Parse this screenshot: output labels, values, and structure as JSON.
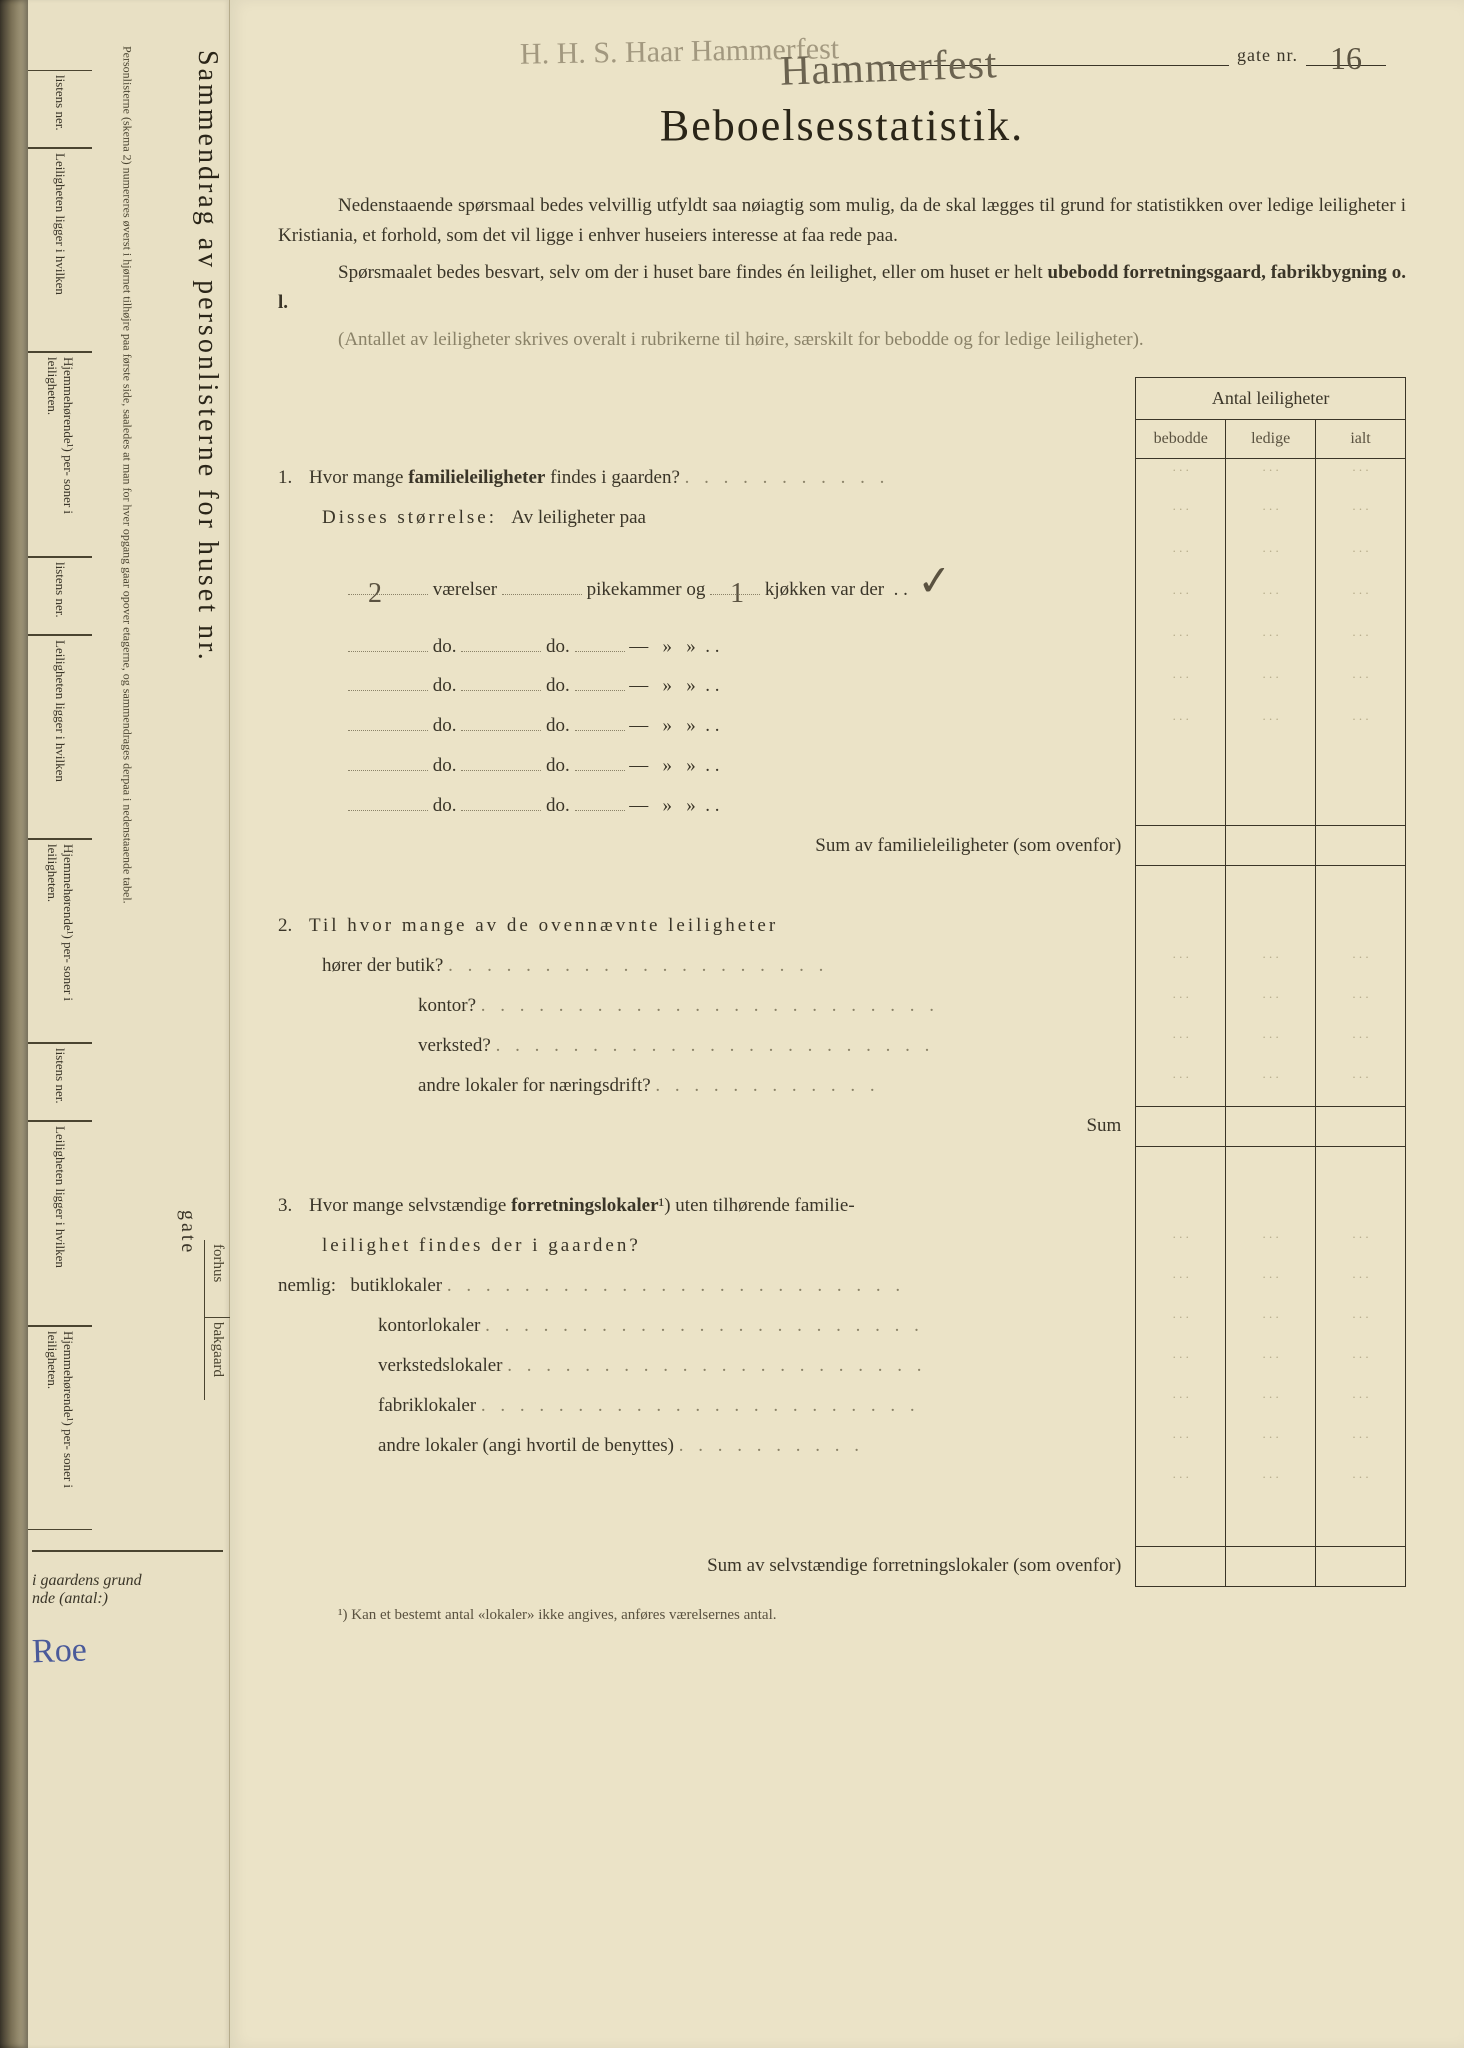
{
  "page": {
    "background_color": "#ebe3c7",
    "text_color": "#3a3528",
    "faint_color": "#8a8268",
    "rule_color": "#3a3528"
  },
  "top": {
    "handwritten_note": "H. H. S. Haar\nHammerfest",
    "street_handwritten": "Hammerfest",
    "gate_label": "gate nr.",
    "gate_number": "16"
  },
  "title": "Beboelsesstatistik.",
  "intro": {
    "p1": "Nedenstaaende spørsmaal bedes velvillig utfyldt saa nøiagtig som mulig, da de skal lægges til grund for statistikken over ledige leiligheter i Kristiania, et forhold, som det vil ligge i enhver huseiers interesse at faa rede paa.",
    "p2_a": "Spørsmaalet bedes besvart, selv om der i huset bare findes én leilighet, eller om huset er helt ",
    "p2_b": "ubebodd forretningsgaard, fabrikbygning o. l.",
    "p3": "(Antallet av leiligheter skrives overalt i rubrikerne til høire, særskilt for bebodde og for ledige leiligheter)."
  },
  "table_head": {
    "main": "Antal leiligheter",
    "c1": "bebodde",
    "c2": "ledige",
    "c3": "ialt"
  },
  "q1": {
    "num": "1.",
    "text_a": "Hvor mange ",
    "text_b": "familieleiligheter",
    "text_c": " findes i gaarden?",
    "size_label": "Disses størrelse:",
    "size_sub": "Av leiligheter paa",
    "rows": [
      {
        "vaer": "2",
        "pike": "",
        "kjok": "1",
        "check": "✓"
      },
      {
        "vaer": "",
        "pike": "",
        "kjok": "",
        "check": ""
      },
      {
        "vaer": "",
        "pike": "",
        "kjok": "",
        "check": ""
      },
      {
        "vaer": "",
        "pike": "",
        "kjok": "",
        "check": ""
      },
      {
        "vaer": "",
        "pike": "",
        "kjok": "",
        "check": ""
      },
      {
        "vaer": "",
        "pike": "",
        "kjok": "",
        "check": ""
      }
    ],
    "unit_vaer": "værelser",
    "unit_pike": "pikekammer og",
    "unit_kjok": "kjøkken var der",
    "do": "do.",
    "dash": "—",
    "quote": "»",
    "sum": "Sum av familieleiligheter (som ovenfor)"
  },
  "q2": {
    "num": "2.",
    "text": "Til hvor mange av de ovennævnte leiligheter",
    "lines": [
      "hører der butik?",
      "kontor?",
      "verksted?",
      "andre lokaler for næringsdrift?"
    ],
    "sum": "Sum"
  },
  "q3": {
    "num": "3.",
    "text_a": "Hvor mange selvstændige ",
    "text_b": "forretningslokaler",
    "text_c": "¹) uten tilhørende familie-",
    "text_d": "leilighet findes der i gaarden?",
    "nemlig": "nemlig:",
    "lines": [
      "butiklokaler",
      "kontorlokaler",
      "verkstedslokaler",
      "fabriklokaler",
      "andre lokaler (angi hvortil de benyttes)"
    ],
    "sum": "Sum av selvstændige forretningslokaler (som ovenfor)"
  },
  "footnote": "¹) Kan et bestemt antal «lokaler» ikke angives, anføres værelsernes antal.",
  "left": {
    "title": "Sammendrag av personlisterne for huset nr.",
    "fine": "Personlisterne (skema 2) numereres øverst i hjørnet tilhøjre paa første side, saaledes at man for hver opgang gaar opover etagerne, og sammendrages derpaa i nedenstaaende tabel.",
    "gate": "gate",
    "forhus": "forhus",
    "bakgaard": "bakgaard",
    "segs": [
      "listens\nner.",
      "Leiligheten\nligger i hvilken",
      "Hjemmehørende¹) per-\nsoner i leiligheten."
    ],
    "bottom_a": "i gaardens grund",
    "bottom_b": "nde (antal:)",
    "signature": "Roe"
  }
}
